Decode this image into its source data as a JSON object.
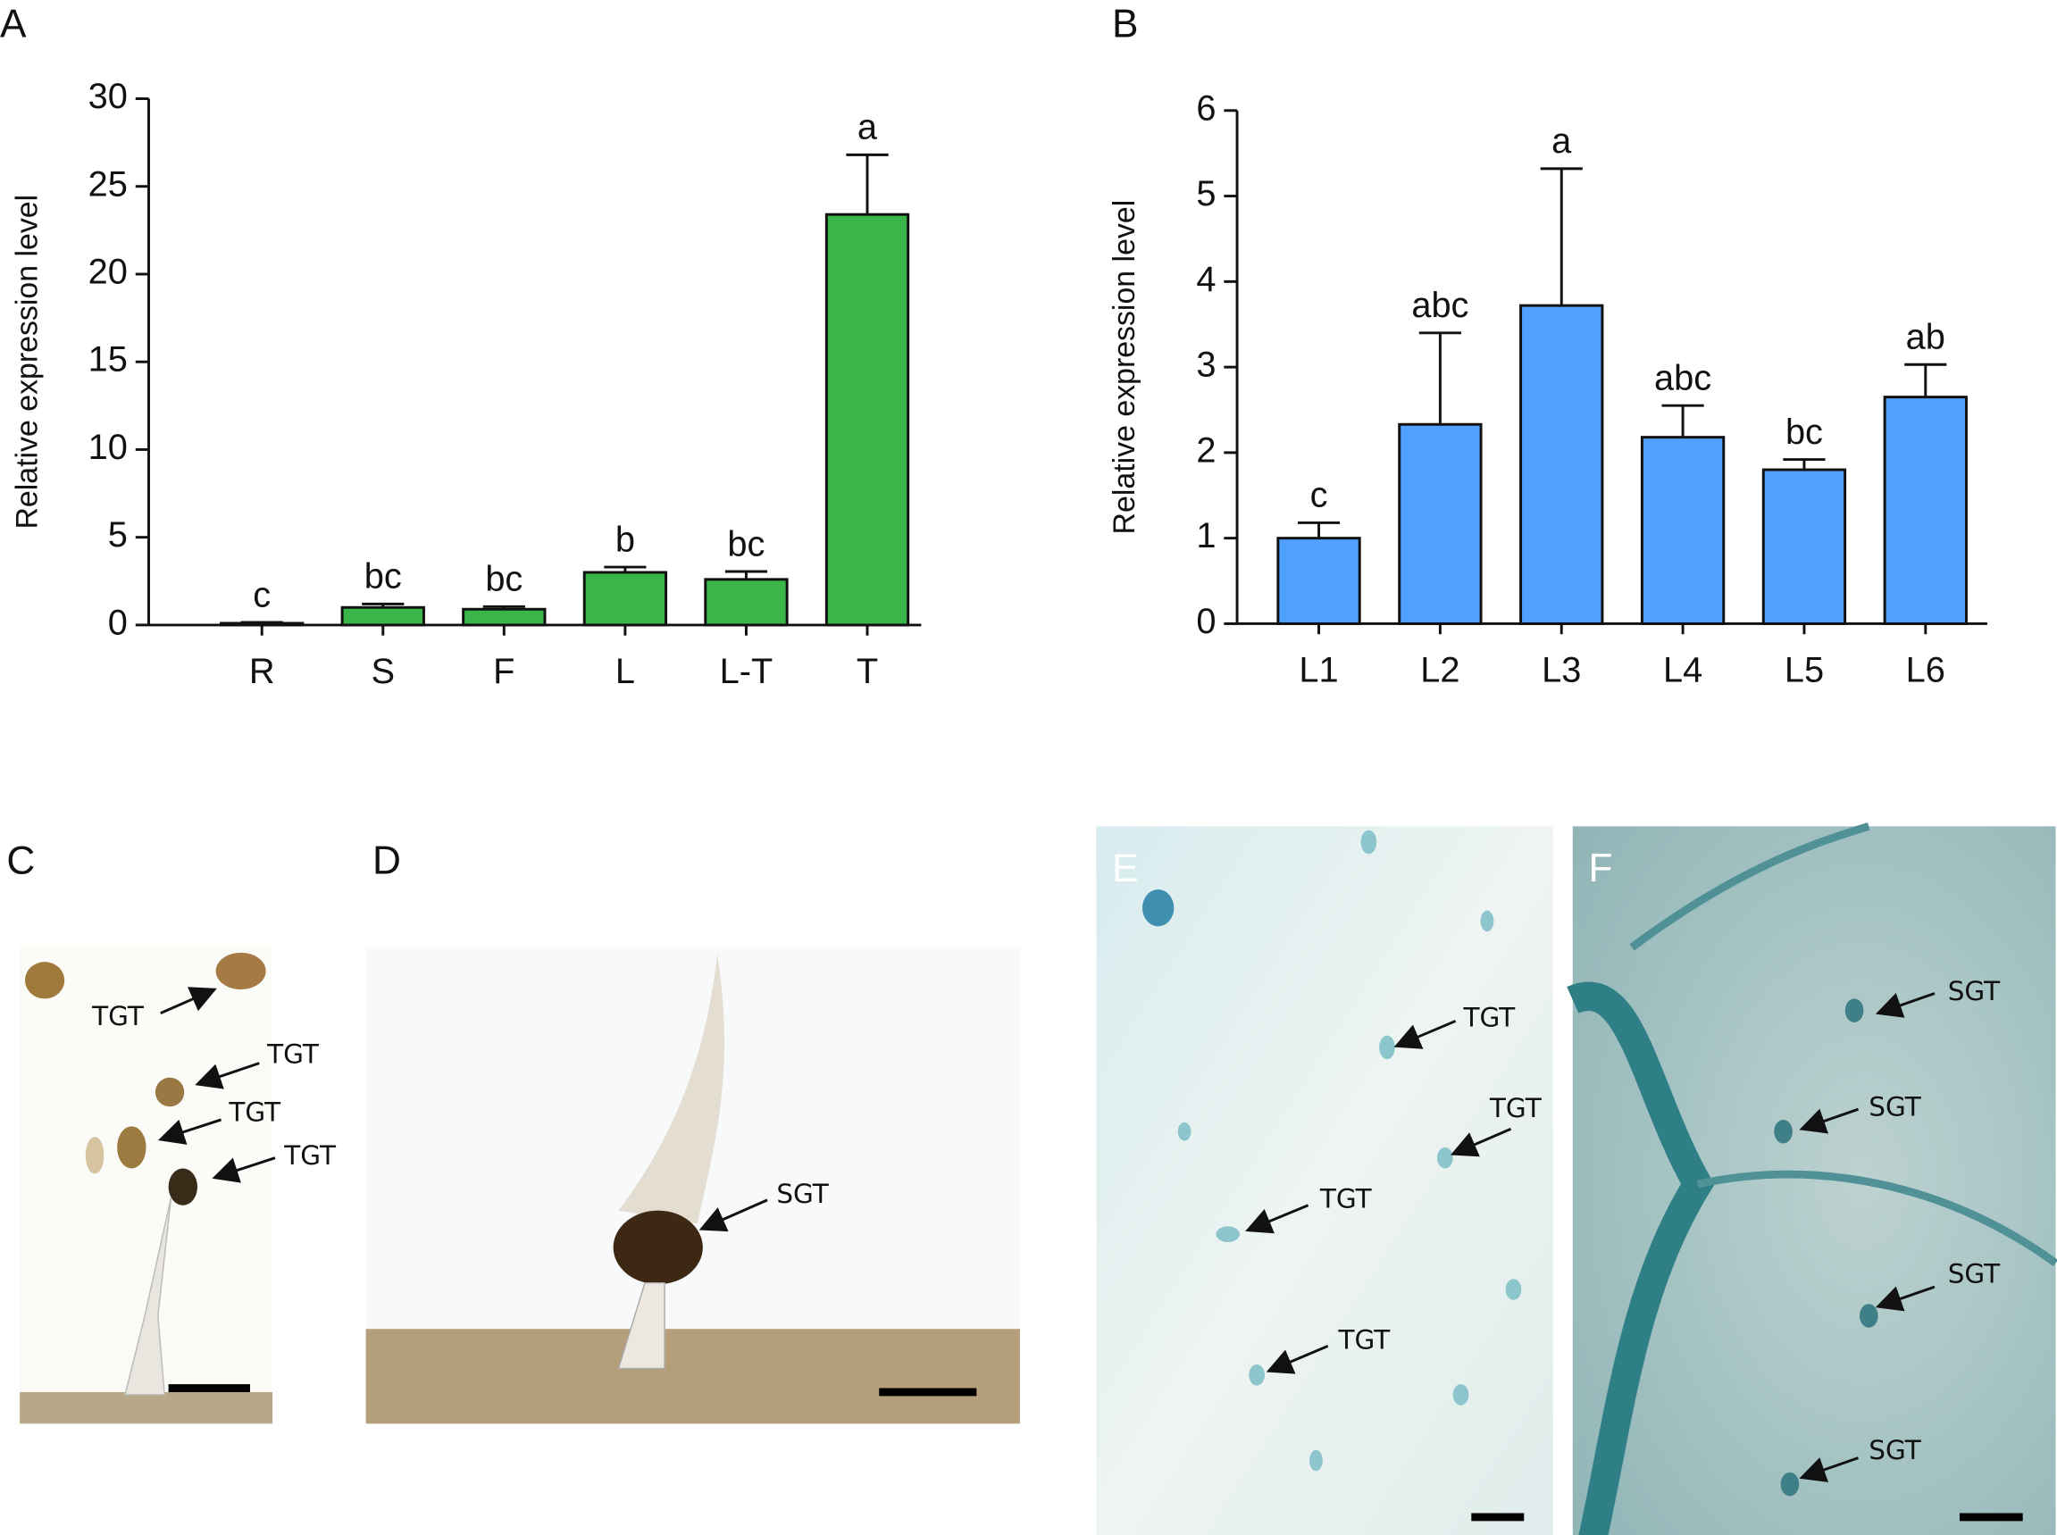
{
  "chart_data": [
    {
      "type": "bar",
      "panel": "A",
      "ylabel": "Relative expression level",
      "categories": [
        "R",
        "S",
        "F",
        "L",
        "L-T",
        "T"
      ],
      "values": [
        0.1,
        1.0,
        0.9,
        3.0,
        2.6,
        23.4
      ],
      "errors": [
        0.05,
        0.2,
        0.15,
        0.3,
        0.45,
        3.4
      ],
      "annotations": [
        "c",
        "bc",
        "bc",
        "b",
        "bc",
        "a"
      ],
      "color": "#39b54a",
      "ylim": [
        0,
        30
      ],
      "yticks": [
        0,
        5,
        10,
        15,
        20,
        25,
        30
      ]
    },
    {
      "type": "bar",
      "panel": "B",
      "ylabel": "Relative expression level",
      "categories": [
        "L1",
        "L2",
        "L3",
        "L4",
        "L5",
        "L6"
      ],
      "values": [
        1.0,
        2.33,
        3.72,
        2.18,
        1.8,
        2.65
      ],
      "errors": [
        0.18,
        1.07,
        1.6,
        0.37,
        0.12,
        0.38
      ],
      "annotations": [
        "c",
        "abc",
        "a",
        "abc",
        "bc",
        "ab"
      ],
      "color": "#4fa0ff",
      "ylim": [
        0,
        6
      ],
      "yticks": [
        0,
        1,
        2,
        3,
        4,
        5,
        6
      ]
    }
  ],
  "images": [
    {
      "label": "C",
      "annotations": [
        "TGT",
        "TGT",
        "TGT",
        "TGT"
      ]
    },
    {
      "label": "D",
      "annotations": [
        "SGT"
      ]
    },
    {
      "label": "E",
      "annotations": [
        "TGT",
        "TGT",
        "TGT",
        "TGT"
      ]
    },
    {
      "label": "F",
      "annotations": [
        "SGT",
        "SGT",
        "SGT",
        "SGT"
      ]
    }
  ]
}
